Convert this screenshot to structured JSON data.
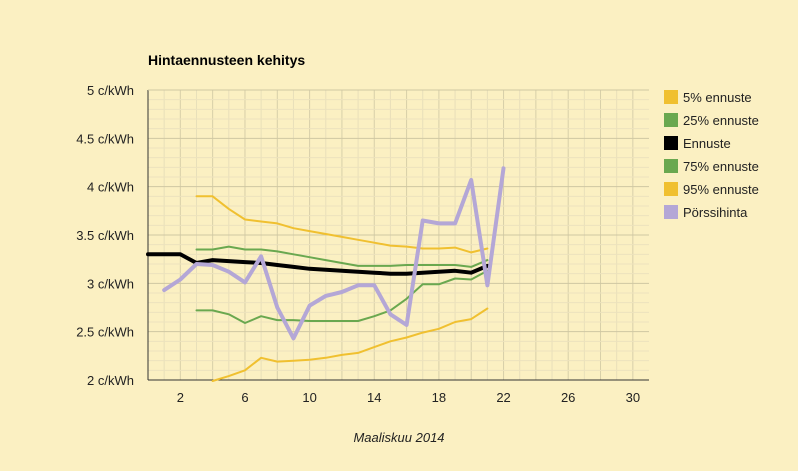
{
  "chart_data": {
    "type": "line",
    "title": "Hintaennusteen kehitys",
    "xlabel": "Maaliskuu 2014",
    "ylabel": "",
    "xlim": [
      0,
      31
    ],
    "ylim": [
      2,
      5
    ],
    "xticks": [
      2,
      6,
      10,
      14,
      18,
      22,
      26,
      30
    ],
    "yticks": [
      2,
      2.5,
      3,
      3.5,
      4,
      4.5,
      5
    ],
    "ytick_labels": [
      "2 c/kWh",
      "2.5 c/kWh",
      "3 c/kWh",
      "3.5 c/kWh",
      "4 c/kWh",
      "4.5 c/kWh",
      "5 c/kWh"
    ],
    "grid": true,
    "legend_position": "right",
    "series": [
      {
        "name": "5% ennuste",
        "color": "#f0c030",
        "width": 2,
        "x": [
          4,
          5,
          6,
          7,
          8,
          9,
          10,
          11,
          12,
          13,
          14,
          15,
          16,
          17,
          18,
          19,
          20,
          21
        ],
        "y": [
          1.99,
          2.04,
          2.1,
          2.23,
          2.19,
          2.2,
          2.21,
          2.23,
          2.26,
          2.28,
          2.34,
          2.4,
          2.44,
          2.49,
          2.53,
          2.6,
          2.63,
          2.74
        ]
      },
      {
        "name": "25% ennuste",
        "color": "#6aa84f",
        "width": 2,
        "x": [
          3,
          4,
          5,
          6,
          7,
          8,
          9,
          10,
          11,
          12,
          13,
          14,
          15,
          16,
          17,
          18,
          19,
          20,
          21
        ],
        "y": [
          2.72,
          2.72,
          2.68,
          2.59,
          2.66,
          2.62,
          2.62,
          2.61,
          2.61,
          2.61,
          2.61,
          2.66,
          2.72,
          2.84,
          2.99,
          2.99,
          3.05,
          3.04,
          3.13
        ]
      },
      {
        "name": "Ennuste",
        "color": "#000000",
        "width": 4,
        "x": [
          0,
          1,
          2,
          3,
          4,
          5,
          6,
          7,
          8,
          9,
          10,
          11,
          12,
          13,
          14,
          15,
          16,
          17,
          18,
          19,
          20,
          21
        ],
        "y": [
          3.3,
          3.3,
          3.3,
          3.21,
          3.24,
          3.23,
          3.22,
          3.21,
          3.19,
          3.17,
          3.15,
          3.14,
          3.13,
          3.12,
          3.11,
          3.1,
          3.1,
          3.11,
          3.12,
          3.13,
          3.11,
          3.18
        ]
      },
      {
        "name": "75% ennuste",
        "color": "#6aa84f",
        "width": 2,
        "x": [
          3,
          4,
          5,
          6,
          7,
          8,
          9,
          10,
          11,
          12,
          13,
          14,
          15,
          16,
          17,
          18,
          19,
          20,
          21
        ],
        "y": [
          3.35,
          3.35,
          3.38,
          3.35,
          3.35,
          3.33,
          3.3,
          3.27,
          3.24,
          3.21,
          3.18,
          3.18,
          3.18,
          3.19,
          3.19,
          3.19,
          3.19,
          3.17,
          3.24
        ]
      },
      {
        "name": "95% ennuste",
        "color": "#f0c030",
        "width": 2,
        "x": [
          3,
          4,
          5,
          6,
          7,
          8,
          9,
          10,
          11,
          12,
          13,
          14,
          15,
          16,
          17,
          18,
          19,
          20,
          21
        ],
        "y": [
          3.9,
          3.9,
          3.77,
          3.66,
          3.64,
          3.62,
          3.57,
          3.54,
          3.51,
          3.48,
          3.45,
          3.42,
          3.39,
          3.38,
          3.36,
          3.36,
          3.37,
          3.32,
          3.36
        ]
      },
      {
        "name": "Pörssihinta",
        "color": "#b4a7d6",
        "width": 4,
        "x": [
          1,
          2,
          3,
          4,
          5,
          6,
          7,
          8,
          9,
          10,
          11,
          12,
          13,
          14,
          15,
          16,
          17,
          18,
          19,
          20,
          21,
          22
        ],
        "y": [
          2.93,
          3.04,
          3.2,
          3.19,
          3.12,
          3.01,
          3.28,
          2.75,
          2.43,
          2.77,
          2.87,
          2.91,
          2.98,
          2.98,
          2.68,
          2.57,
          3.65,
          3.62,
          3.62,
          4.07,
          2.98,
          4.19
        ]
      }
    ]
  }
}
